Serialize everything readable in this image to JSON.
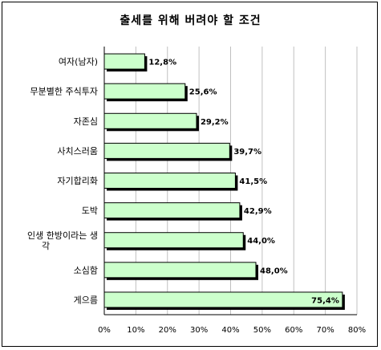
{
  "chart_data": {
    "type": "bar",
    "orientation": "horizontal",
    "title": "출세를 위해 버려야 할 조건",
    "categories": [
      "여자(남자)",
      "무분별한 주식투자",
      "자존심",
      "사치스러움",
      "자기합리화",
      "도박",
      "인생 한방이라는 생각",
      "소심함",
      "게으름"
    ],
    "values": [
      12.8,
      25.6,
      29.2,
      39.7,
      41.5,
      42.9,
      44.0,
      48.0,
      75.4
    ],
    "value_labels": [
      "12,8%",
      "25,6%",
      "29,2%",
      "39,7%",
      "41,5%",
      "42,9%",
      "44,0%",
      "48,0%",
      "75,4%"
    ],
    "xticks": [
      "0%",
      "10%",
      "20%",
      "30%",
      "40%",
      "50%",
      "60%",
      "70%",
      "80%"
    ],
    "xlim": [
      0,
      80
    ],
    "grid": true,
    "bar_color": "#ccffcc",
    "legend": false
  }
}
